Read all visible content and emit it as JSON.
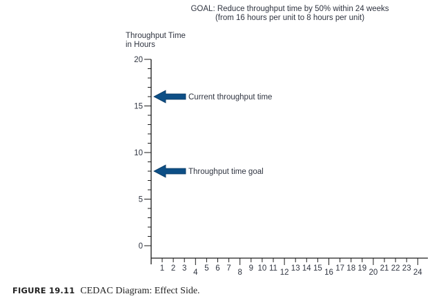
{
  "goal": {
    "line1": "GOAL: Reduce throughput time by 50% within 24 weeks",
    "line2": "(from 16 hours per unit to 8 hours per unit)"
  },
  "y_axis": {
    "label_line1": "Throughput Time",
    "label_line2": "in Hours"
  },
  "annotations": [
    {
      "label": "Current throughput time",
      "value": 16,
      "icon": "left-arrow-icon"
    },
    {
      "label": "Throughput time goal",
      "value": 8,
      "icon": "left-arrow-icon"
    }
  ],
  "caption": {
    "figure": "FIGURE 19.11",
    "title": "CEDAC Diagram: Effect Side."
  },
  "colors": {
    "arrow_fill": "#0d4f86",
    "axis": "#1a1a1a",
    "text": "#2f3440"
  },
  "chart_data": {
    "type": "line",
    "title": "GOAL: Reduce throughput time by 50% within 24 weeks (from 16 hours per unit to 8 hours per unit)",
    "xlabel": "",
    "ylabel": "Throughput Time in Hours",
    "ylim": [
      0,
      20
    ],
    "xlim": [
      0,
      24
    ],
    "y_ticks": [
      0,
      5,
      10,
      15,
      20
    ],
    "y_minor_step": 1,
    "x_ticks": [
      "1",
      "2",
      "3",
      "4",
      "5",
      "6",
      "7",
      "8",
      "9",
      "10",
      "11",
      "12",
      "13",
      "14",
      "15",
      "16",
      "17",
      "18",
      "19",
      "20",
      "21",
      "22",
      "23",
      "24"
    ],
    "x_major_every": 4,
    "series": [],
    "reference_markers": [
      {
        "name": "Current throughput time",
        "y": 16
      },
      {
        "name": "Throughput time goal",
        "y": 8
      }
    ],
    "grid": false
  }
}
